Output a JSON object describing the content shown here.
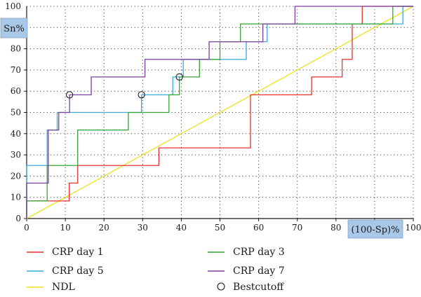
{
  "chart_data": {
    "type": "line",
    "subtype": "roc-step",
    "ylabel": "Sn%",
    "xlabel": "(100-Sp)%",
    "xlim": [
      0,
      100
    ],
    "ylim": [
      0,
      100
    ],
    "x_ticks": [
      0,
      10,
      20,
      30,
      40,
      50,
      60,
      70,
      80,
      90,
      100
    ],
    "y_ticks": [
      0,
      10,
      20,
      30,
      40,
      50,
      60,
      70,
      80,
      90,
      100
    ],
    "grid": true,
    "legend_position": "bottom",
    "series": [
      {
        "name": "CRP day 1",
        "color": "#e8312f",
        "points": [
          [
            0,
            0
          ],
          [
            0,
            8.3
          ],
          [
            11,
            8.3
          ],
          [
            11,
            16.7
          ],
          [
            13.2,
            16.7
          ],
          [
            13.2,
            25
          ],
          [
            34.2,
            25
          ],
          [
            34.2,
            33.3
          ],
          [
            57.9,
            33.3
          ],
          [
            57.9,
            58.3
          ],
          [
            73.7,
            58.3
          ],
          [
            73.7,
            66.7
          ],
          [
            81.6,
            66.7
          ],
          [
            81.6,
            75
          ],
          [
            84.2,
            75
          ],
          [
            84.2,
            91.7
          ],
          [
            86.8,
            91.7
          ],
          [
            86.8,
            100
          ],
          [
            100,
            100
          ]
        ]
      },
      {
        "name": "CRP day 5",
        "color": "#3ca9dc",
        "points": [
          [
            0,
            0
          ],
          [
            0,
            25
          ],
          [
            5.3,
            25
          ],
          [
            5.3,
            41.7
          ],
          [
            7.9,
            41.7
          ],
          [
            7.9,
            50
          ],
          [
            29.7,
            50
          ],
          [
            29.7,
            58.3
          ],
          [
            37.8,
            58.3
          ],
          [
            37.8,
            66.7
          ],
          [
            40.5,
            66.7
          ],
          [
            40.5,
            75
          ],
          [
            56.8,
            75
          ],
          [
            56.8,
            83.3
          ],
          [
            62.2,
            83.3
          ],
          [
            62.2,
            91.7
          ],
          [
            97.3,
            91.7
          ],
          [
            97.3,
            100
          ],
          [
            100,
            100
          ]
        ]
      },
      {
        "name": "CRP day 3",
        "color": "#33a532",
        "points": [
          [
            0,
            0
          ],
          [
            0,
            8.3
          ],
          [
            5.3,
            8.3
          ],
          [
            5.3,
            25
          ],
          [
            13.2,
            25
          ],
          [
            13.2,
            41.7
          ],
          [
            26.3,
            41.7
          ],
          [
            26.3,
            50
          ],
          [
            36.8,
            50
          ],
          [
            36.8,
            58.3
          ],
          [
            39.5,
            58.3
          ],
          [
            39.5,
            66.7
          ],
          [
            44.7,
            66.7
          ],
          [
            44.7,
            75
          ],
          [
            50,
            75
          ],
          [
            50,
            83.3
          ],
          [
            55.3,
            83.3
          ],
          [
            55.3,
            91.7
          ],
          [
            94.7,
            91.7
          ],
          [
            94.7,
            100
          ],
          [
            100,
            100
          ]
        ]
      },
      {
        "name": "CRP day 7",
        "color": "#7b3fa0",
        "points": [
          [
            0,
            0
          ],
          [
            0,
            16.7
          ],
          [
            5.6,
            16.7
          ],
          [
            5.6,
            41.7
          ],
          [
            8.3,
            41.7
          ],
          [
            8.3,
            50
          ],
          [
            11.1,
            50
          ],
          [
            11.1,
            58.3
          ],
          [
            16.7,
            58.3
          ],
          [
            16.7,
            66.7
          ],
          [
            30.6,
            66.7
          ],
          [
            30.6,
            75
          ],
          [
            47.2,
            75
          ],
          [
            47.2,
            83.3
          ],
          [
            61.1,
            83.3
          ],
          [
            61.1,
            91.7
          ],
          [
            69.4,
            91.7
          ],
          [
            69.4,
            100
          ],
          [
            100,
            100
          ]
        ]
      },
      {
        "name": "NDL",
        "color": "#f0e020",
        "points": [
          [
            0,
            0
          ],
          [
            100,
            100
          ]
        ]
      }
    ],
    "best_cutoff_label": "Bestcutoff",
    "best_cutoffs": [
      [
        11.1,
        58.3
      ],
      [
        29.7,
        58.3
      ],
      [
        39.5,
        66.7
      ]
    ],
    "legend": [
      {
        "name": "CRP day 1",
        "color": "#e8312f",
        "kind": "line"
      },
      {
        "name": "CRP day 3",
        "color": "#33a532",
        "kind": "line"
      },
      {
        "name": "CRP day 5",
        "color": "#3ca9dc",
        "kind": "line"
      },
      {
        "name": "CRP day 7",
        "color": "#7b3fa0",
        "kind": "line"
      },
      {
        "name": "NDL",
        "color": "#f0e020",
        "kind": "line"
      },
      {
        "name": "Bestcutoff",
        "color": "#1a1a1a",
        "kind": "circle"
      }
    ],
    "axis_tag_color": "#a9c8e8"
  }
}
